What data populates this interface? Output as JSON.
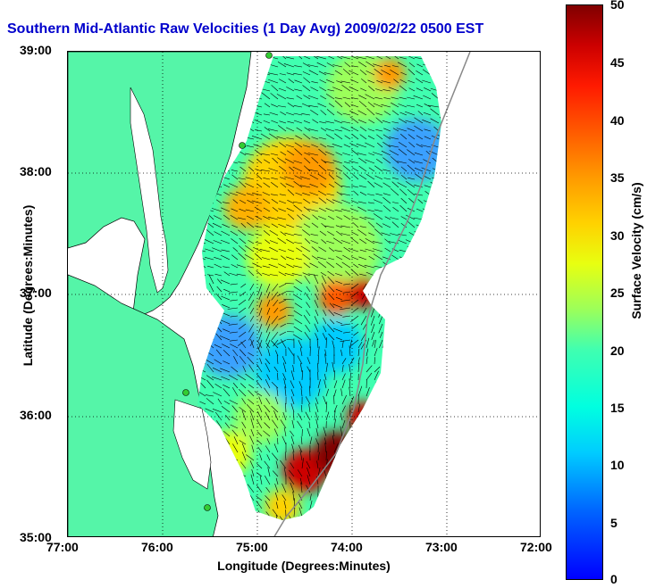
{
  "title": "Southern Mid-Atlantic Raw Velocities (1 Day Avg) 2009/02/22 0500 EST",
  "axes": {
    "xlabel": "Longitude (Degrees:Minutes)",
    "ylabel": "Latitude (Degrees:Minutes)",
    "xticks": [
      "77:00",
      "76:00",
      "75:00",
      "74:00",
      "73:00",
      "72:00"
    ],
    "yticks": [
      "39:00",
      "38:00",
      "37:00",
      "36:00",
      "35:00"
    ]
  },
  "colorbar": {
    "label": "Surface Velocity (cm/s)",
    "ticks": [
      "50",
      "45",
      "40",
      "35",
      "30",
      "25",
      "20",
      "15",
      "10",
      "5",
      "0"
    ],
    "range": [
      0,
      50
    ],
    "colormap": "jet"
  },
  "colors": {
    "land": "#55f5a8",
    "title": "#0000cc",
    "coast": "#000000",
    "shelf_contour": "#888888",
    "station_marker": "#33cc33"
  },
  "map": {
    "lon_range": [
      -77,
      -72
    ],
    "lat_range": [
      35,
      39
    ],
    "grid": true,
    "stations": 5
  }
}
